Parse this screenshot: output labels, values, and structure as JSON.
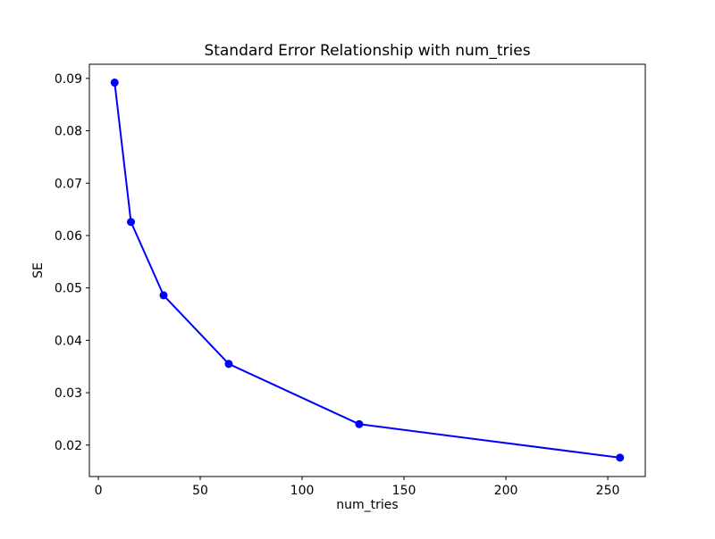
{
  "figure": {
    "background": "#ffffff",
    "spine_color": "#000000",
    "text_color": "#000000"
  },
  "chart_data": {
    "type": "line",
    "title": "Standard Error Relationship with num_tries",
    "xlabel": "num_tries",
    "ylabel": "SE",
    "x": [
      8,
      16,
      32,
      64,
      128,
      256
    ],
    "y": [
      0.0892,
      0.0626,
      0.0486,
      0.0355,
      0.024,
      0.0176
    ],
    "line_color": "#0000ff",
    "marker": "circle",
    "marker_color": "#0000ff",
    "xlim": [
      -4.4,
      268.4
    ],
    "ylim": [
      0.014,
      0.0927
    ],
    "xticks": [
      0,
      50,
      100,
      150,
      200,
      250
    ],
    "xtick_labels": [
      "0",
      "50",
      "100",
      "150",
      "200",
      "250"
    ],
    "yticks": [
      0.02,
      0.03,
      0.04,
      0.05,
      0.06,
      0.07,
      0.08,
      0.09
    ],
    "ytick_labels": [
      "0.02",
      "0.03",
      "0.04",
      "0.05",
      "0.06",
      "0.07",
      "0.08",
      "0.09"
    ],
    "grid": false,
    "legend": false
  }
}
